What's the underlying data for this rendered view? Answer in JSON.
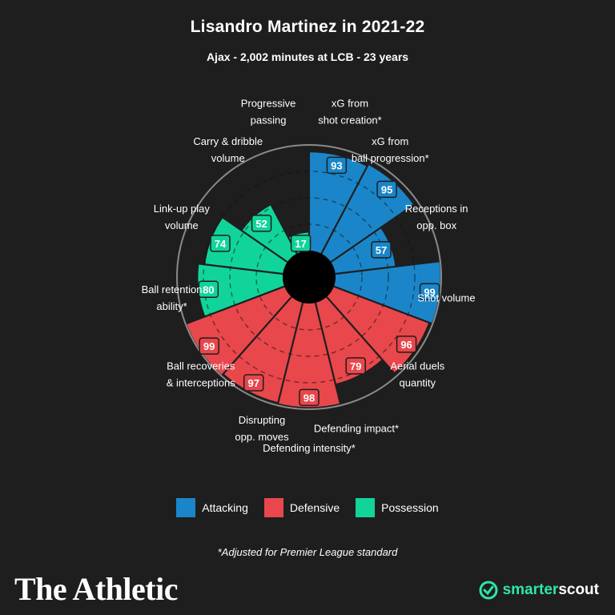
{
  "header": {
    "title": "Lisandro Martinez in 2021-22",
    "subtitle": "Ajax - 2,002 minutes at LCB - 23 years"
  },
  "colors": {
    "background": "#1e1e1e",
    "attacking": "#1a86c9",
    "defensive": "#e8474c",
    "possession": "#11d49a",
    "grid": "#8a8a8a"
  },
  "chart_data": {
    "type": "polar-bar",
    "max": 100,
    "segments": [
      {
        "label": "xG from shot creation*",
        "value": 93,
        "category": "Attacking"
      },
      {
        "label": "xG from ball progression*",
        "value": 95,
        "category": "Attacking"
      },
      {
        "label": "Receptions in opp. box",
        "value": 57,
        "category": "Attacking"
      },
      {
        "label": "Shot volume",
        "value": 99,
        "category": "Attacking"
      },
      {
        "label": "Aerial duels quantity",
        "value": 96,
        "category": "Defensive"
      },
      {
        "label": "Defending impact*",
        "value": 79,
        "category": "Defensive"
      },
      {
        "label": "Defending intensity*",
        "value": 98,
        "category": "Defensive"
      },
      {
        "label": "Disrupting opp. moves",
        "value": 97,
        "category": "Defensive"
      },
      {
        "label": "Ball recoveries & interceptions",
        "value": 99,
        "category": "Defensive"
      },
      {
        "label": "Ball retention ability*",
        "value": 80,
        "category": "Possession"
      },
      {
        "label": "Link-up play volume",
        "value": 74,
        "category": "Possession"
      },
      {
        "label": "Carry & dribble volume",
        "value": 52,
        "category": "Possession"
      },
      {
        "label": "Progressive passing",
        "value": 17,
        "category": "Possession"
      }
    ]
  },
  "labels": [
    [
      "xG from",
      "shot creation*"
    ],
    [
      "xG from",
      "ball progression*"
    ],
    [
      "Receptions in",
      "opp. box"
    ],
    [
      "Shot volume"
    ],
    [
      "Aerial duels",
      "quantity"
    ],
    [
      "Defending impact*"
    ],
    [
      "Defending intensity*"
    ],
    [
      "Disrupting",
      "opp. moves"
    ],
    [
      "Ball recoveries",
      "& interceptions"
    ],
    [
      "Ball retention",
      "ability*"
    ],
    [
      "Link-up play",
      "volume"
    ],
    [
      "Carry & dribble",
      "volume"
    ],
    [
      "Progressive",
      "passing"
    ]
  ],
  "legend": [
    {
      "label": "Attacking",
      "color": "#1a86c9"
    },
    {
      "label": "Defensive",
      "color": "#e8474c"
    },
    {
      "label": "Possession",
      "color": "#11d49a"
    }
  ],
  "footnote": "*Adjusted for Premier League standard",
  "branding": {
    "left": "The Athletic",
    "right_a": "smarter",
    "right_b": "scout"
  }
}
